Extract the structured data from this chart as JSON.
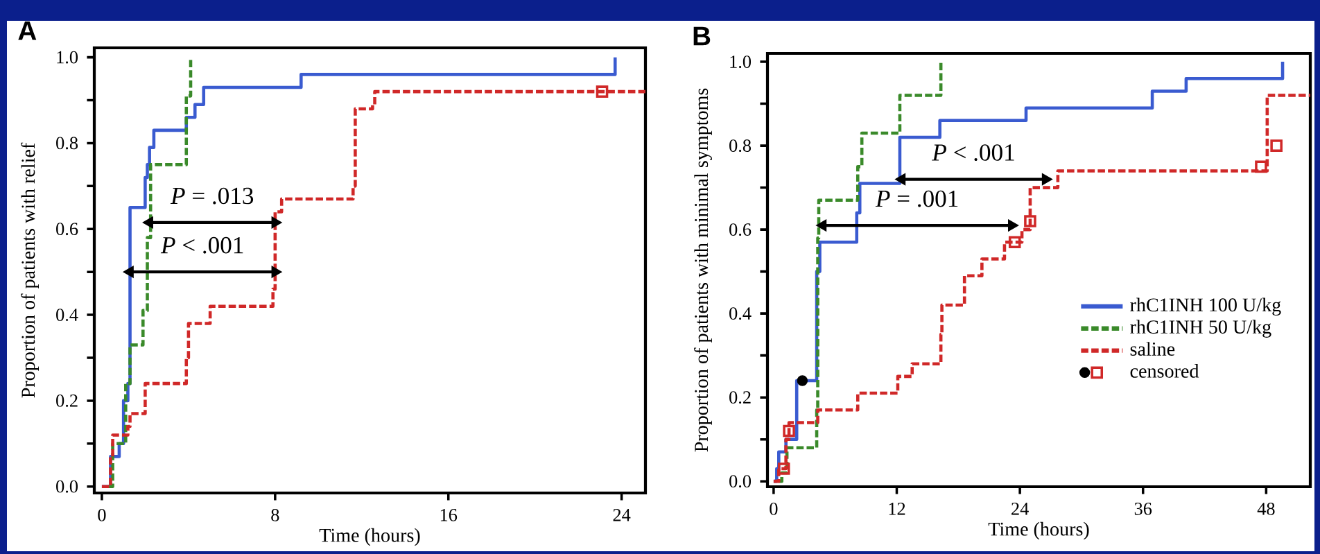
{
  "chart_data": [
    {
      "type": "step",
      "title": "A",
      "xlabel": "Time (hours)",
      "ylabel": "Proportion of patients  with relief",
      "xlim": [
        -0.35,
        25.1
      ],
      "ylim": [
        -0.015,
        1.022
      ],
      "xticks": [
        0,
        8,
        16,
        24
      ],
      "yticks": [
        {
          "value": 0,
          "label": "0.0"
        },
        {
          "value": 0.1,
          "label": null
        },
        {
          "value": 0.2,
          "label": "0.2"
        },
        {
          "value": 0.3,
          "label": null
        },
        {
          "value": 0.4,
          "label": "0.4"
        },
        {
          "value": 0.5,
          "label": null
        },
        {
          "value": 0.6,
          "label": "0.6"
        },
        {
          "value": 0.7,
          "label": null
        },
        {
          "value": 0.8,
          "label": "0.8"
        },
        {
          "value": 0.9,
          "label": null
        },
        {
          "value": 1.0,
          "label": "1.0"
        }
      ],
      "legend": false,
      "series": [
        {
          "color": "#3a5bd0",
          "line_style": "solid",
          "x": [
            0,
            0.4,
            0.8,
            1.0,
            1.2,
            1.3,
            2.0,
            2.1,
            2.2,
            2.4,
            3.9,
            4.3,
            4.7,
            9.2,
            23.7
          ],
          "values": [
            0,
            0.07,
            0.1,
            0.2,
            0.24,
            0.65,
            0.72,
            0.75,
            0.79,
            0.83,
            0.86,
            0.89,
            0.93,
            0.96,
            1.0
          ]
        },
        {
          "color": "#3a8a2a",
          "line_style": "dashed",
          "x": [
            0.3,
            0.5,
            1.1,
            1.3,
            1.9,
            2.1,
            2.25,
            3.9,
            4.1
          ],
          "values": [
            0,
            0.1,
            0.24,
            0.33,
            0.41,
            0.58,
            0.75,
            0.91,
            1.0
          ]
        },
        {
          "color": "#d02828",
          "line_style": "dashed",
          "x": [
            0,
            0.4,
            0.5,
            1.2,
            1.3,
            2.0,
            3.9,
            4.0,
            4.2,
            5.0,
            7.9,
            8.0,
            8.1,
            8.3,
            11.6,
            11.7,
            12.5,
            12.6,
            25.1
          ],
          "values": [
            0,
            0.07,
            0.12,
            0.14,
            0.17,
            0.24,
            0.3,
            0.38,
            0.38,
            0.42,
            0.46,
            0.64,
            0.64,
            0.67,
            0.7,
            0.88,
            0.89,
            0.92,
            0.92
          ]
        },
        {
          "type": "scatter",
          "color": "#d02828",
          "marker": "square",
          "x": [
            23.1
          ],
          "values": [
            0.92
          ]
        },
        {
          "type": "line",
          "color": "#000000",
          "line_style": "solid",
          "marker": "triangle",
          "x": [
            2.2,
            8.0
          ],
          "values": [
            0.615,
            0.615
          ]
        },
        {
          "type": "line",
          "color": "#000000",
          "line_style": "solid",
          "marker": "triangle",
          "x": [
            1.3,
            8.0
          ],
          "values": [
            0.5,
            0.5
          ]
        }
      ],
      "annotations": [
        "*P* = .013",
        "*P* < .001"
      ]
    },
    {
      "type": "step",
      "title": "B",
      "xlabel": "Time (hours)",
      "ylabel": "Proportion of patients with minimal symptoms",
      "xlim": [
        -0.6,
        52.3
      ],
      "ylim": [
        -0.013,
        1.02
      ],
      "xticks": [
        0,
        12,
        24,
        36,
        48
      ],
      "yticks": [
        {
          "value": 0,
          "label": "0.0"
        },
        {
          "value": 0.1,
          "label": null
        },
        {
          "value": 0.2,
          "label": "0.2"
        },
        {
          "value": 0.3,
          "label": null
        },
        {
          "value": 0.4,
          "label": "0.4"
        },
        {
          "value": 0.5,
          "label": null
        },
        {
          "value": 0.6,
          "label": "0.6"
        },
        {
          "value": 0.7,
          "label": null
        },
        {
          "value": 0.8,
          "label": "0.8"
        },
        {
          "value": 0.9,
          "label": null
        },
        {
          "value": 1.0,
          "label": "1.0"
        }
      ],
      "legend": "bottom right",
      "series": [
        {
          "name": "rhC1INH 100 U/kg",
          "color": "#3a5bd0",
          "line_style": "solid",
          "x": [
            0,
            0.3,
            0.5,
            1.2,
            2.25,
            4.2,
            4.5,
            8.1,
            8.4,
            12.3,
            16.2,
            24.6,
            36.9,
            40.2,
            49.6
          ],
          "values": [
            0,
            0.03,
            0.07,
            0.1,
            0.24,
            0.5,
            0.57,
            0.64,
            0.71,
            0.82,
            0.86,
            0.89,
            0.93,
            0.96,
            1.0
          ]
        },
        {
          "name": "rhC1INH  50 U/kg",
          "color": "#3a8a2a",
          "line_style": "dashed",
          "x": [
            0.5,
            0.8,
            1.3,
            4.2,
            4.3,
            4.4,
            8.2,
            8.6,
            12.3,
            16.3
          ],
          "values": [
            0,
            0.02,
            0.08,
            0.17,
            0.58,
            0.67,
            0.75,
            0.83,
            0.92,
            1.0
          ]
        },
        {
          "name": "saline",
          "color": "#d02828",
          "line_style": "dashed",
          "x": [
            0,
            0.5,
            1.2,
            1.5,
            4.3,
            8.2,
            12.1,
            13.5,
            16.3,
            16.4,
            18.6,
            20.3,
            22.5,
            24.2,
            25.0,
            27.7,
            48.1,
            52.3
          ],
          "values": [
            0,
            0.03,
            0.1,
            0.14,
            0.17,
            0.21,
            0.25,
            0.28,
            0.35,
            0.42,
            0.49,
            0.53,
            0.57,
            0.6,
            0.7,
            0.74,
            0.92,
            0.92
          ]
        },
        {
          "type": "scatter",
          "color": "#000000",
          "marker": "circle",
          "x": [
            2.8
          ],
          "values": [
            0.24
          ]
        },
        {
          "type": "scatter",
          "name": "censored",
          "color": "#d02828",
          "marker": "square",
          "x": [
            1.0,
            1.5,
            23.5,
            25.0,
            47.5,
            49.0
          ],
          "values": [
            0.03,
            0.12,
            0.57,
            0.62,
            0.75,
            0.8
          ]
        },
        {
          "type": "line",
          "color": "#000000",
          "line_style": "solid",
          "marker": "triangle",
          "x": [
            12.5,
            26.5
          ],
          "values": [
            0.72,
            0.72
          ]
        },
        {
          "type": "line",
          "color": "#000000",
          "line_style": "solid",
          "marker": "triangle",
          "x": [
            4.8,
            23.2
          ],
          "values": [
            0.61,
            0.61
          ]
        }
      ],
      "annotations": [
        "*P* < .001",
        "*P* = .001"
      ]
    }
  ]
}
